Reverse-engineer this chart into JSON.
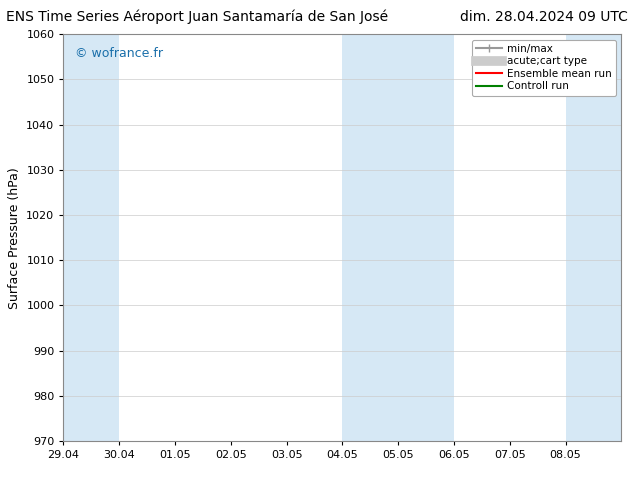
{
  "title_left": "ENS Time Series Aéroport Juan Santamaría de San José",
  "title_right": "dim. 28.04.2024 09 UTC",
  "ylabel": "Surface Pressure (hPa)",
  "ylim": [
    970,
    1060
  ],
  "yticks": [
    970,
    980,
    990,
    1000,
    1010,
    1020,
    1030,
    1040,
    1050,
    1060
  ],
  "x_labels": [
    "29.04",
    "30.04",
    "01.05",
    "02.05",
    "03.05",
    "04.05",
    "05.05",
    "06.05",
    "07.05",
    "08.05"
  ],
  "shaded_bands": [
    {
      "xmin": 0,
      "xmax": 1
    },
    {
      "xmin": 5,
      "xmax": 6
    },
    {
      "xmin": 6,
      "xmax": 7
    },
    {
      "xmin": 9,
      "xmax": 10
    }
  ],
  "band_color": "#d6e8f5",
  "watermark": "© wofrance.fr",
  "watermark_color": "#1a6faa",
  "background_color": "#ffffff",
  "grid_color": "#cccccc",
  "legend_items": [
    {
      "label": "min/max",
      "color": "#999999",
      "lw": 1.5
    },
    {
      "label": "acute;cart type",
      "color": "#cccccc",
      "lw": 7
    },
    {
      "label": "Ensemble mean run",
      "color": "red",
      "lw": 1.5
    },
    {
      "label": "Controll run",
      "color": "green",
      "lw": 1.5
    }
  ],
  "title_fontsize": 10,
  "axis_fontsize": 9,
  "tick_fontsize": 8
}
